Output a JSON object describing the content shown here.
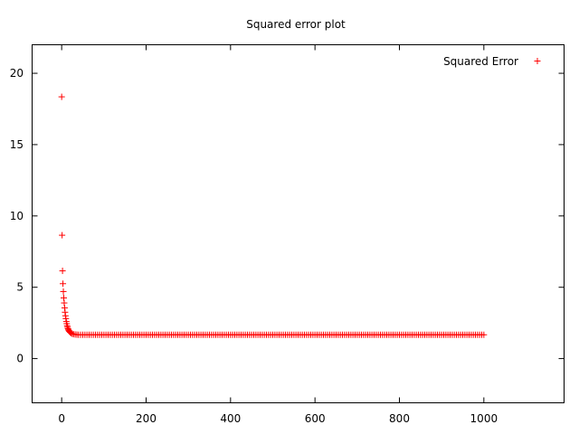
{
  "chart_data": {
    "type": "scatter",
    "title": "Squared error plot",
    "xlabel": "",
    "ylabel": "",
    "xlim": [
      -70,
      1190
    ],
    "ylim": [
      -3.1,
      22
    ],
    "x_ticks": [
      0,
      200,
      400,
      600,
      800,
      1000
    ],
    "y_ticks": [
      0,
      5,
      10,
      15,
      20
    ],
    "grid": false,
    "legend_position": "top-right",
    "series": [
      {
        "name": "Squared Error",
        "color": "#ff0000",
        "marker": "plus",
        "first_points": [
          [
            0,
            18.35
          ],
          [
            1,
            8.65
          ],
          [
            2,
            6.15
          ],
          [
            3,
            5.25
          ],
          [
            4,
            4.7
          ],
          [
            5,
            4.25
          ],
          [
            6,
            3.9
          ],
          [
            7,
            3.55
          ],
          [
            8,
            3.25
          ],
          [
            9,
            3.0
          ],
          [
            10,
            2.8
          ],
          [
            11,
            2.6
          ],
          [
            12,
            2.45
          ],
          [
            13,
            2.3
          ],
          [
            14,
            2.2
          ],
          [
            15,
            2.1
          ],
          [
            16,
            2.02
          ],
          [
            17,
            1.96
          ],
          [
            18,
            1.9
          ],
          [
            20,
            1.84
          ],
          [
            22,
            1.79
          ],
          [
            25,
            1.74
          ],
          [
            28,
            1.71
          ],
          [
            32,
            1.69
          ],
          [
            36,
            1.68
          ],
          [
            40,
            1.67
          ]
        ],
        "plateau": {
          "x_start": 45,
          "x_end": 1000,
          "step": 5,
          "y": 1.67
        }
      }
    ]
  }
}
